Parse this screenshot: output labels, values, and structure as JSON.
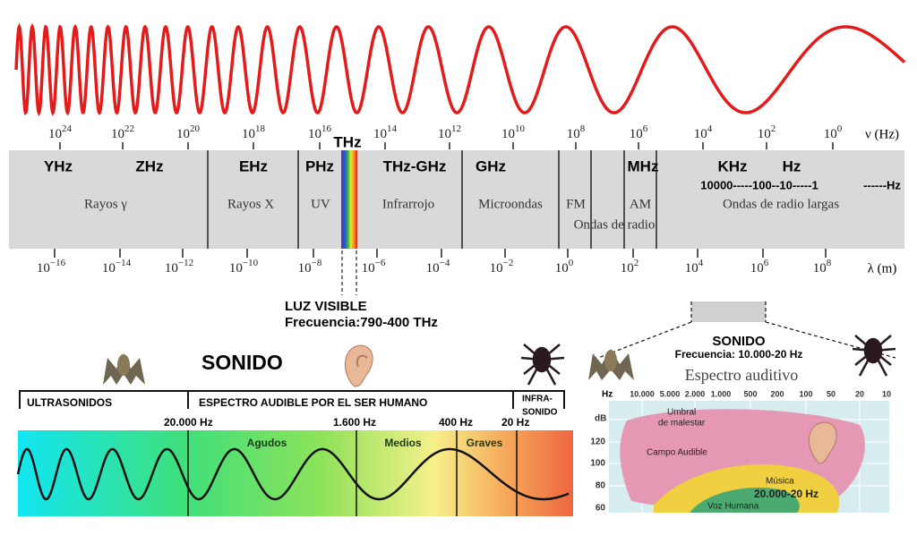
{
  "frequency_axis": {
    "ticks": [
      {
        "base": "10",
        "exp": "24"
      },
      {
        "base": "10",
        "exp": "22"
      },
      {
        "base": "10",
        "exp": "20"
      },
      {
        "base": "10",
        "exp": "18"
      },
      {
        "base": "10",
        "exp": "16"
      },
      {
        "base": "10",
        "exp": "14"
      },
      {
        "base": "10",
        "exp": "12"
      },
      {
        "base": "10",
        "exp": "10"
      },
      {
        "base": "10",
        "exp": "8"
      },
      {
        "base": "10",
        "exp": "6"
      },
      {
        "base": "10",
        "exp": "4"
      },
      {
        "base": "10",
        "exp": "2"
      },
      {
        "base": "10",
        "exp": "0"
      }
    ],
    "unit": "ν (Hz)"
  },
  "bands": [
    "YHz",
    "ZHz",
    "EHz",
    "PHz",
    "THz",
    "THz-GHz",
    "GHz",
    "MHz",
    "KHz",
    "Hz"
  ],
  "decimal_scale": "10000-----100--10-----1",
  "decimal_unit": "------Hz",
  "regions": [
    "Rayos γ",
    "Rayos X",
    "UV",
    "Infrarrojo",
    "Microondas",
    "FM",
    "AM",
    "Ondas de radio",
    "Ondas de radio largas"
  ],
  "wavelength_axis": {
    "ticks": [
      {
        "base": "10",
        "exp": "−16"
      },
      {
        "base": "10",
        "exp": "−14"
      },
      {
        "base": "10",
        "exp": "−12"
      },
      {
        "base": "10",
        "exp": "−10"
      },
      {
        "base": "10",
        "exp": "−8"
      },
      {
        "base": "10",
        "exp": "−6"
      },
      {
        "base": "10",
        "exp": "−4"
      },
      {
        "base": "10",
        "exp": "−2"
      },
      {
        "base": "10",
        "exp": "0"
      },
      {
        "base": "10",
        "exp": "2"
      },
      {
        "base": "10",
        "exp": "4"
      },
      {
        "base": "10",
        "exp": "6"
      },
      {
        "base": "10",
        "exp": "8"
      }
    ],
    "unit": "λ (m)"
  },
  "visible_light": {
    "title": "LUZ VISIBLE",
    "frequency": "Frecuencia:790-400 THz"
  },
  "sound": {
    "title": "SONIDO",
    "ranges": [
      "ULTRASONIDOS",
      "ESPECTRO AUDIBLE POR EL SER HUMANO",
      "INFRA-",
      "SONIDO"
    ],
    "limits": [
      "20.000 Hz",
      "1.600 Hz",
      "400 Hz",
      "20 Hz"
    ],
    "zones": [
      "Agudos",
      "Medios",
      "Graves"
    ]
  },
  "hearing": {
    "title": "SONIDO",
    "frequency": "Frecuencia: 10.000-20 Hz",
    "chart_title": "Espectro auditivo",
    "x_unit": "Hz",
    "x_labels": [
      "10.000",
      "5.000",
      "2.000",
      "1.000",
      "500",
      "200",
      "100",
      "50",
      "20",
      "10"
    ],
    "y_unit": "dB",
    "y_labels": [
      "120",
      "100",
      "80",
      "60"
    ],
    "areas": [
      "Umbral",
      "de malestar",
      "Campo Audible",
      "Música",
      "20.000-20 Hz",
      "Voz Humana"
    ]
  }
}
